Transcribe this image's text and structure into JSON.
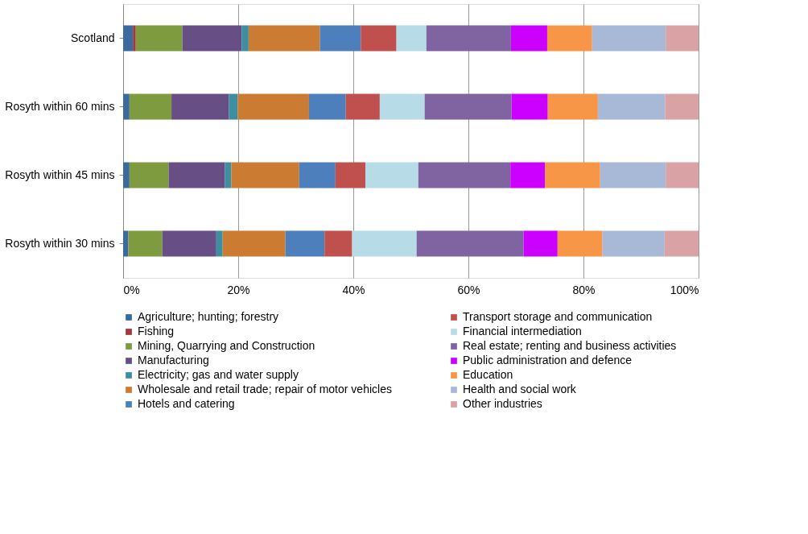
{
  "chart_data": {
    "type": "bar",
    "orientation": "horizontal",
    "stacked": true,
    "categories": [
      "Scotland",
      "Rosyth within 60 mins",
      "Rosyth within 45 mins",
      "Rosyth within 30 mins"
    ],
    "series": [
      {
        "name": "Agriculture; hunting; forestry",
        "color": "#3b6aa0",
        "values": [
          1.7,
          1.1,
          1.1,
          0.9
        ]
      },
      {
        "name": "Fishing",
        "color": "#a0393b",
        "values": [
          0.5,
          0,
          0,
          0
        ]
      },
      {
        "name": "Mining, Quarrying and Construction",
        "color": "#7f9b3f",
        "values": [
          8.1,
          7.3,
          6.8,
          5.9
        ]
      },
      {
        "name": "Manufacturing",
        "color": "#674f86",
        "values": [
          10.3,
          10.0,
          9.8,
          9.4
        ]
      },
      {
        "name": "Electricity; gas and water supply",
        "color": "#3b8fa0",
        "values": [
          1.2,
          1.5,
          1.1,
          1.1
        ]
      },
      {
        "name": "Wholesale and retail trade; repair of motor vehicles",
        "color": "#cc7b33",
        "values": [
          12.4,
          12.4,
          11.8,
          10.9
        ]
      },
      {
        "name": "Hotels and catering",
        "color": "#4e7fbd",
        "values": [
          7.1,
          6.4,
          6.3,
          6.8
        ]
      },
      {
        "name": "Transport storage and communication",
        "color": "#c0504d",
        "values": [
          6.2,
          5.9,
          5.2,
          4.8
        ]
      },
      {
        "name": "Financial intermediation",
        "color": "#b7dce8",
        "values": [
          5.2,
          7.8,
          9.2,
          11.2
        ]
      },
      {
        "name": "Real estate; renting and business activities",
        "color": "#8064a2",
        "values": [
          14.7,
          15.1,
          16.0,
          18.6
        ]
      },
      {
        "name": "Public administration and defence",
        "color": "#cc00ff",
        "values": [
          6.3,
          6.3,
          6.0,
          5.9
        ]
      },
      {
        "name": "Education",
        "color": "#f79646",
        "values": [
          7.8,
          8.7,
          9.6,
          7.8
        ]
      },
      {
        "name": "Health and social work",
        "color": "#a7b9d7",
        "values": [
          12.8,
          11.7,
          11.4,
          10.8
        ]
      },
      {
        "name": "Other industries",
        "color": "#d9a3a5",
        "values": [
          5.7,
          5.8,
          5.7,
          5.9
        ]
      }
    ],
    "xlim": [
      0,
      100
    ],
    "xticks": [
      {
        "value": 0,
        "label": "0%"
      },
      {
        "value": 20,
        "label": "20%"
      },
      {
        "value": 40,
        "label": "40%"
      },
      {
        "value": 60,
        "label": "60%"
      },
      {
        "value": 80,
        "label": "80%"
      },
      {
        "value": 100,
        "label": "100%"
      }
    ],
    "grid": "x",
    "legend": "bottom"
  }
}
